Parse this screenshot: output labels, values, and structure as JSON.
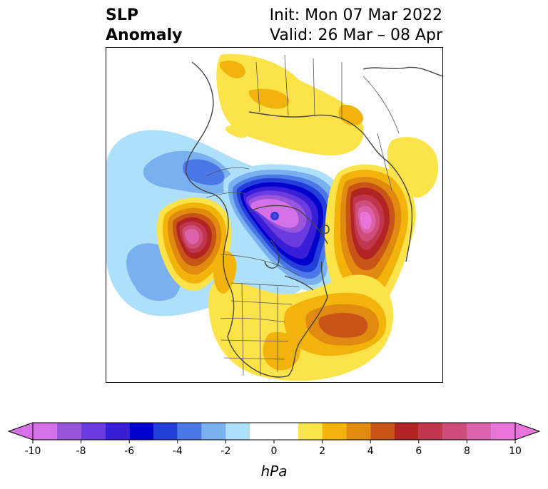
{
  "header": {
    "title_line1": "SLP",
    "title_line2": "Anomaly",
    "init_text": "Init: Mon 07 Mar 2022",
    "valid_text": "Valid: 26 Mar – 08 Apr"
  },
  "colorbar": {
    "unit": "hPa",
    "tick_labels": [
      "-10",
      "-8",
      "-6",
      "-4",
      "-2",
      "0",
      "2",
      "4",
      "6",
      "8",
      "10"
    ],
    "levels": [
      -10,
      -9,
      -8,
      -7,
      -6,
      -5,
      -4,
      -3,
      -2,
      -1,
      1,
      2,
      3,
      4,
      5,
      6,
      7,
      8,
      9,
      10
    ],
    "colors": [
      "#d670e6",
      "#9b55dc",
      "#6a3ce0",
      "#3a1dd6",
      "#0000cc",
      "#233fd9",
      "#4b78e6",
      "#78b0f0",
      "#aee0fb",
      "#ffffff",
      "#fde34a",
      "#f2b40b",
      "#e08a10",
      "#c85418",
      "#b22424",
      "#c0364d",
      "#cf4d7a",
      "#dc62ab",
      "#e874d9"
    ],
    "extend": "both"
  },
  "map": {
    "projection": "polar stereographic, North America / Arctic",
    "features": [
      "coastlines",
      "country borders",
      "US state borders"
    ]
  }
}
